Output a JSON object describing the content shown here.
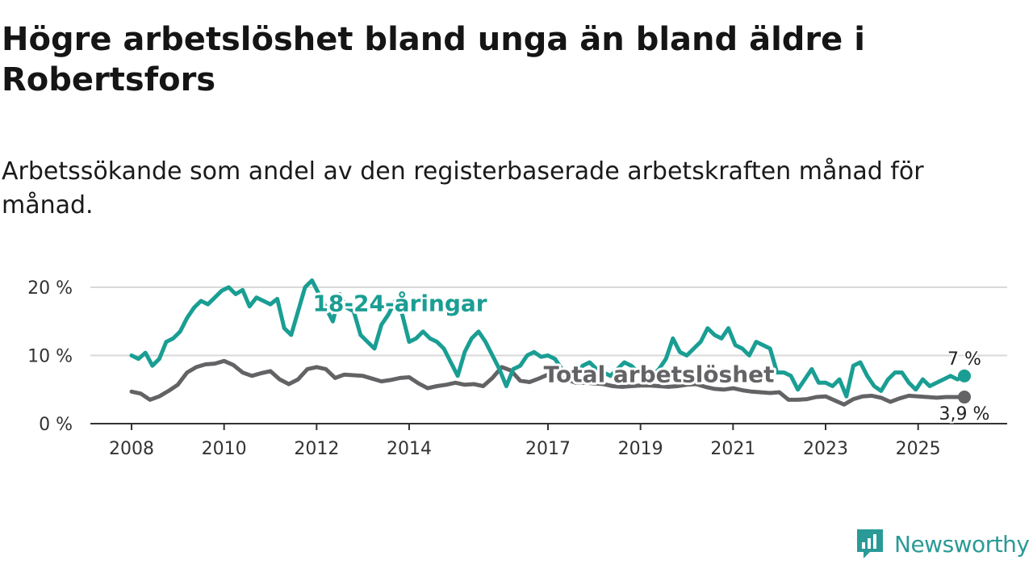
{
  "header": {
    "title": "Högre arbetslöshet bland unga än bland äldre i Robertsfors",
    "subtitle": "Arbetssökande som andel av den registerbaserade arbetskraften månad för månad."
  },
  "branding": {
    "name": "Newsworthy",
    "color": "#2a9a96"
  },
  "chart_data": {
    "type": "line",
    "title": "Högre arbetslöshet bland unga än bland äldre i Robertsfors",
    "xlabel": "",
    "ylabel": "",
    "ylim": [
      0,
      22
    ],
    "xlim": [
      2008,
      2026.8
    ],
    "yticks": [
      {
        "value": 0,
        "label": "0 %"
      },
      {
        "value": 10,
        "label": "10 %"
      },
      {
        "value": 20,
        "label": "20 %"
      }
    ],
    "xticks": [
      {
        "value": 2008,
        "label": "2008"
      },
      {
        "value": 2010,
        "label": "2010"
      },
      {
        "value": 2012,
        "label": "2012"
      },
      {
        "value": 2014,
        "label": "2014"
      },
      {
        "value": 2017,
        "label": "2017"
      },
      {
        "value": 2019,
        "label": "2019"
      },
      {
        "value": 2021,
        "label": "2021"
      },
      {
        "value": 2023,
        "label": "2023"
      },
      {
        "value": 2025,
        "label": "2025"
      }
    ],
    "grid": true,
    "series": [
      {
        "name": "18-24-åringar",
        "color": "#1a9e93",
        "end_label": "7 %",
        "x": [
          2008.0,
          2008.15,
          2008.3,
          2008.45,
          2008.6,
          2008.75,
          2008.9,
          2009.05,
          2009.2,
          2009.35,
          2009.5,
          2009.65,
          2009.8,
          2009.95,
          2010.1,
          2010.25,
          2010.4,
          2010.55,
          2010.7,
          2010.85,
          2011.0,
          2011.15,
          2011.3,
          2011.45,
          2011.6,
          2011.75,
          2011.9,
          2012.05,
          2012.2,
          2012.35,
          2012.5,
          2012.65,
          2012.8,
          2012.95,
          2013.1,
          2013.25,
          2013.4,
          2013.55,
          2013.7,
          2013.85,
          2014.0,
          2014.15,
          2014.3,
          2014.45,
          2014.6,
          2014.75,
          2014.9,
          2015.05,
          2015.2,
          2015.35,
          2015.5,
          2015.65,
          2015.8,
          2015.95,
          2016.1,
          2016.25,
          2016.4,
          2016.55,
          2016.7,
          2016.85,
          2017.0,
          2017.15,
          2017.3,
          2017.45,
          2017.6,
          2017.75,
          2017.9,
          2018.05,
          2018.2,
          2018.35,
          2018.5,
          2018.65,
          2018.8,
          2018.95,
          2019.1,
          2019.25,
          2019.4,
          2019.55,
          2019.7,
          2019.85,
          2020.0,
          2020.15,
          2020.3,
          2020.45,
          2020.6,
          2020.75,
          2020.9,
          2021.05,
          2021.2,
          2021.35,
          2021.5,
          2021.65,
          2021.8,
          2021.95,
          2022.1,
          2022.25,
          2022.4,
          2022.55,
          2022.7,
          2022.85,
          2023.0,
          2023.15,
          2023.3,
          2023.45,
          2023.6,
          2023.75,
          2023.9,
          2024.05,
          2024.2,
          2024.35,
          2024.5,
          2024.65,
          2024.8,
          2024.95,
          2025.1,
          2025.25,
          2025.4,
          2025.55,
          2025.7,
          2025.85,
          2026.0
        ],
        "values": [
          10,
          9.5,
          10.4,
          8.5,
          9.5,
          12,
          12.5,
          13.5,
          15.5,
          17,
          18,
          17.5,
          18.5,
          19.5,
          20,
          19,
          19.6,
          17.2,
          18.5,
          18,
          17.5,
          18.3,
          14,
          13,
          16.5,
          20,
          21,
          19,
          17,
          15,
          19,
          17,
          16.5,
          13,
          12,
          11,
          14.5,
          16,
          18,
          16,
          12,
          12.5,
          13.5,
          12.5,
          12,
          11,
          9,
          7,
          10.5,
          12.5,
          13.5,
          12,
          10,
          8,
          5.5,
          8,
          8.5,
          10,
          10.5,
          9.8,
          10,
          9.5,
          8,
          7.5,
          7,
          8.5,
          9,
          8,
          7.5,
          7,
          8,
          9,
          8.5,
          7.5,
          7,
          7,
          8,
          9.5,
          12.5,
          10.5,
          10,
          11,
          12,
          14,
          13,
          12.5,
          14,
          11.5,
          11,
          10,
          12,
          11.5,
          11,
          7.5,
          7.5,
          7,
          5,
          6.5,
          8,
          6,
          6,
          5.5,
          6.5,
          4,
          8.5,
          9,
          7,
          5.5,
          4.8,
          6.5,
          7.5,
          7.5,
          6,
          5,
          6.5,
          5.5,
          6,
          6.5,
          7,
          6.5,
          7
        ]
      },
      {
        "name": "Total arbetslöshet",
        "color": "#636366",
        "end_label": "3,9 %",
        "x": [
          2008.0,
          2008.2,
          2008.4,
          2008.6,
          2008.8,
          2009.0,
          2009.2,
          2009.4,
          2009.6,
          2009.8,
          2010.0,
          2010.2,
          2010.4,
          2010.6,
          2010.8,
          2011.0,
          2011.2,
          2011.4,
          2011.6,
          2011.8,
          2012.0,
          2012.2,
          2012.4,
          2012.6,
          2012.8,
          2013.0,
          2013.2,
          2013.4,
          2013.6,
          2013.8,
          2014.0,
          2014.2,
          2014.4,
          2014.6,
          2014.8,
          2015.0,
          2015.2,
          2015.4,
          2015.6,
          2015.8,
          2016.0,
          2016.2,
          2016.4,
          2016.6,
          2016.8,
          2017.0,
          2017.2,
          2017.4,
          2017.6,
          2017.8,
          2018.0,
          2018.2,
          2018.4,
          2018.6,
          2018.8,
          2019.0,
          2019.2,
          2019.4,
          2019.6,
          2019.8,
          2020.0,
          2020.2,
          2020.4,
          2020.6,
          2020.8,
          2021.0,
          2021.2,
          2021.4,
          2021.6,
          2021.8,
          2022.0,
          2022.2,
          2022.4,
          2022.6,
          2022.8,
          2023.0,
          2023.2,
          2023.4,
          2023.6,
          2023.8,
          2024.0,
          2024.2,
          2024.4,
          2024.6,
          2024.8,
          2025.0,
          2025.2,
          2025.4,
          2025.6,
          2025.8,
          2026.0
        ],
        "values": [
          4.7,
          4.4,
          3.5,
          4.0,
          4.8,
          5.7,
          7.5,
          8.3,
          8.7,
          8.8,
          9.2,
          8.6,
          7.5,
          7.0,
          7.4,
          7.7,
          6.5,
          5.8,
          6.5,
          8.0,
          8.3,
          8.0,
          6.7,
          7.2,
          7.1,
          7.0,
          6.6,
          6.2,
          6.4,
          6.7,
          6.8,
          5.9,
          5.2,
          5.5,
          5.7,
          6.0,
          5.7,
          5.8,
          5.5,
          6.7,
          8.3,
          7.8,
          6.3,
          6.1,
          6.6,
          7.2,
          6.9,
          6.5,
          6.0,
          6.0,
          5.9,
          5.8,
          5.5,
          5.4,
          5.5,
          5.6,
          5.6,
          5.5,
          5.4,
          5.5,
          5.7,
          5.8,
          5.4,
          5.1,
          5.0,
          5.2,
          4.9,
          4.7,
          4.6,
          4.5,
          4.6,
          3.5,
          3.5,
          3.6,
          3.9,
          4.0,
          3.4,
          2.8,
          3.6,
          4.0,
          4.1,
          3.8,
          3.2,
          3.7,
          4.1,
          4.0,
          3.9,
          3.8,
          3.9,
          3.9,
          3.9
        ]
      }
    ]
  }
}
